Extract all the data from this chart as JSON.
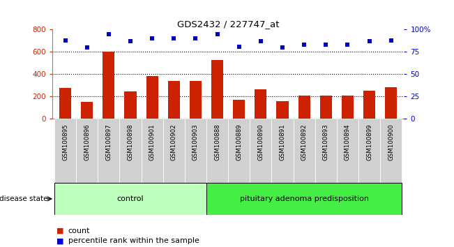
{
  "title": "GDS2432 / 227747_at",
  "samples": [
    "GSM100895",
    "GSM100896",
    "GSM100897",
    "GSM100898",
    "GSM100901",
    "GSM100902",
    "GSM100903",
    "GSM100888",
    "GSM100889",
    "GSM100890",
    "GSM100891",
    "GSM100892",
    "GSM100893",
    "GSM100894",
    "GSM100899",
    "GSM100900"
  ],
  "counts": [
    275,
    148,
    605,
    245,
    385,
    340,
    340,
    525,
    170,
    265,
    158,
    205,
    205,
    205,
    252,
    283
  ],
  "percentiles": [
    88,
    80,
    95,
    87,
    90,
    90,
    90,
    95,
    81,
    87,
    80,
    83,
    83,
    83,
    87,
    88
  ],
  "bar_color": "#cc2200",
  "dot_color": "#0000cc",
  "ylim_left": [
    0,
    800
  ],
  "ylim_right": [
    0,
    100
  ],
  "yticks_left": [
    0,
    200,
    400,
    600,
    800
  ],
  "yticks_right": [
    0,
    25,
    50,
    75,
    100
  ],
  "yticklabels_right": [
    "0",
    "25",
    "50",
    "75",
    "100%"
  ],
  "grid_lines": [
    200,
    400,
    600
  ],
  "control_count": 7,
  "disease_label": "control",
  "disease_label2": "pituitary adenoma predisposition",
  "disease_state_label": "disease state",
  "legend_count_label": "count",
  "legend_percentile_label": "percentile rank within the sample",
  "bg_axis": "#ffffff",
  "xtick_bg": "#d0d0d0",
  "control_color": "#bbffbb",
  "disease_color": "#44ee44",
  "bar_width": 0.55
}
